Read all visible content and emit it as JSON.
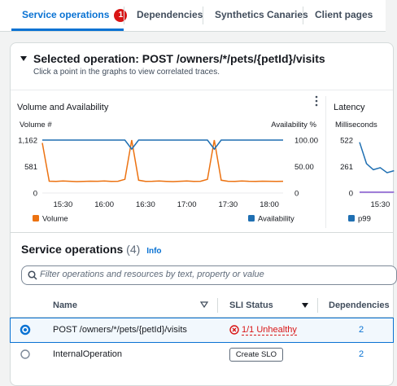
{
  "tabs": [
    {
      "label": "Service operations",
      "badge": 1
    },
    {
      "label": "Dependencies"
    },
    {
      "label": "Synthetics Canaries"
    },
    {
      "label": "Client pages"
    }
  ],
  "operation": {
    "title": "Selected operation: POST /owners/*/pets/{petId}/visits",
    "subtitle": "Click a point in the graphs to view correlated traces."
  },
  "chart_data": [
    {
      "type": "line",
      "title": "Volume and Availability",
      "y_label": "Volume #",
      "y2_label": "Availability %",
      "x": [
        "15:15",
        "15:20",
        "15:25",
        "15:30",
        "15:35",
        "15:40",
        "15:45",
        "15:50",
        "15:55",
        "16:00",
        "16:05",
        "16:10",
        "16:15",
        "16:20",
        "16:25",
        "16:30",
        "16:35",
        "16:40",
        "16:45",
        "16:50",
        "16:55",
        "17:00",
        "17:05",
        "17:10",
        "17:15",
        "17:20",
        "17:25",
        "17:30",
        "17:35",
        "17:40",
        "17:45",
        "17:50",
        "17:55",
        "18:00",
        "18:05",
        "18:10"
      ],
      "xlim": [
        "15:15",
        "18:10"
      ],
      "xticks": [
        "15:30",
        "16:00",
        "16:30",
        "17:00",
        "17:30",
        "18:00"
      ],
      "ylim": [
        0,
        1162
      ],
      "yticks": [
        0,
        581,
        {
          "value": 1162,
          "label": "1,162"
        }
      ],
      "y2lim": [
        0,
        100
      ],
      "y2ticks": [
        0,
        {
          "value": 50,
          "label": "50.00"
        },
        {
          "value": 100,
          "label": "100.00"
        }
      ],
      "series": [
        {
          "name": "Volume",
          "color": "#ec7211",
          "values": [
            1100,
            260,
            255,
            262,
            258,
            250,
            255,
            260,
            258,
            262,
            255,
            257,
            300,
            1162,
            280,
            255,
            258,
            262,
            255,
            250,
            258,
            262,
            255,
            258,
            300,
            1162,
            280,
            258,
            255,
            262,
            258,
            255,
            260,
            258,
            255,
            258
          ]
        },
        {
          "name": "Availability",
          "color": "#1f6fb2",
          "axis": "y2",
          "values": [
            100,
            100,
            100,
            100,
            100,
            100,
            100,
            100,
            100,
            100,
            100,
            100,
            100,
            83,
            100,
            100,
            100,
            100,
            100,
            100,
            100,
            100,
            100,
            100,
            100,
            83,
            100,
            100,
            100,
            100,
            100,
            100,
            100,
            100,
            100,
            100
          ]
        }
      ]
    },
    {
      "type": "line",
      "title": "Latency",
      "y_label": "Milliseconds",
      "x": [
        "15:15",
        "15:20",
        "15:25",
        "15:30",
        "15:35",
        "15:40"
      ],
      "xlim": [
        "15:15",
        "18:10"
      ],
      "xticks": [
        "15:30"
      ],
      "ylim": [
        0,
        522
      ],
      "yticks": [
        0,
        261,
        522
      ],
      "series": [
        {
          "name": "p99",
          "color": "#1f6fb2",
          "values": [
            500,
            290,
            230,
            250,
            200,
            220
          ]
        },
        {
          "color": "#8456ce",
          "values": [
            8,
            8,
            8,
            8,
            8,
            8
          ]
        }
      ]
    }
  ],
  "operations_table": {
    "title": "Service operations",
    "count": "(4)",
    "info": "Info",
    "filter_placeholder": "Filter operations and resources by text, property or value",
    "columns": [
      "Name",
      "SLI Status",
      "Dependencies"
    ],
    "rows": [
      [
        "POST /owners/*/pets/{petId}/visits",
        "1/1 Unhealthy",
        2
      ],
      [
        "InternalOperation",
        "Create SLO",
        2
      ]
    ]
  }
}
